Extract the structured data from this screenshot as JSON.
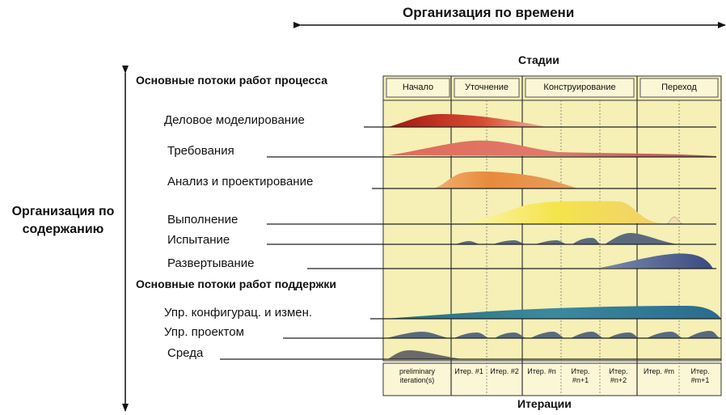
{
  "titles": {
    "time_axis": "Организация по времени",
    "content_axis": "Организация по содержанию",
    "stages": "Стадии",
    "iterations": "Итерации"
  },
  "groups": {
    "process": "Основные потоки работ процесса",
    "support": "Основные потоки работ поддержки"
  },
  "phases": [
    "Начало",
    "Уточнение",
    "Конструирование",
    "Переход"
  ],
  "iterations": [
    "preliminary iteration(s)",
    "Итер. #1",
    "Итер. #2",
    "Итер. #n",
    "Итер. #n+1",
    "Итер. #n+2",
    "Итер. #m",
    "Итер. #m+1"
  ],
  "workflows": [
    {
      "label": "Деловое моделирование",
      "color": "#c8281e"
    },
    {
      "label": "Требования",
      "color": "#d85a48"
    },
    {
      "label": "Анализ и проектирование",
      "color": "#e8843c"
    },
    {
      "label": "Выполнение",
      "color": "#f0e050"
    },
    {
      "label": "Испытание",
      "color": "#3e5a6e"
    },
    {
      "label": "Развертывание",
      "color": "#4a5a8e"
    },
    {
      "label": "Упр. конфигурац. и измен.",
      "color": "#2e7a8e"
    },
    {
      "label": "Упр. проектом",
      "color": "#4a5a6e"
    },
    {
      "label": "Среда",
      "color": "#5a5a5a"
    }
  ],
  "colors": {
    "chart_background": "#f6efb6",
    "gridline": "#333333"
  }
}
